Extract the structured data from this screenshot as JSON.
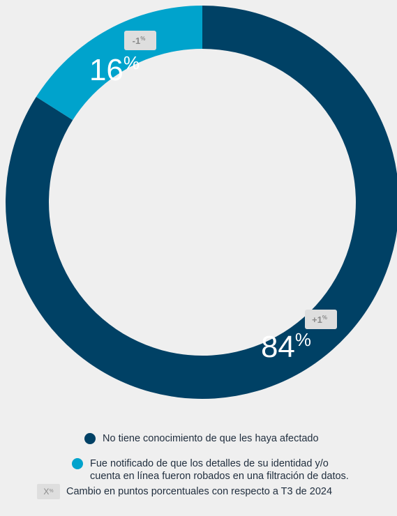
{
  "chart_data": {
    "type": "pie",
    "series": [
      {
        "label": "No tiene conocimiento de que les haya afectado",
        "value": 84,
        "value_display": "84",
        "unit": "%",
        "change": "+1",
        "color": "#004165"
      },
      {
        "label": "Fue notificado de que los detalles de su identidad y/o\ncuenta en línea fueron robados en una filtración de datos.",
        "value": 16,
        "value_display": "16",
        "unit": "%",
        "change": "-1",
        "color": "#00a3cc"
      }
    ],
    "change_unit": "%",
    "donut": true
  },
  "legend": {
    "note_chip": "X",
    "note_chip_unit": "%",
    "note": "Cambio en puntos porcentuales con respecto a T3 de 2024"
  },
  "colors": {
    "background": "#efefef",
    "chip_background": "#dedede",
    "chip_text": "#8a8a8a"
  }
}
